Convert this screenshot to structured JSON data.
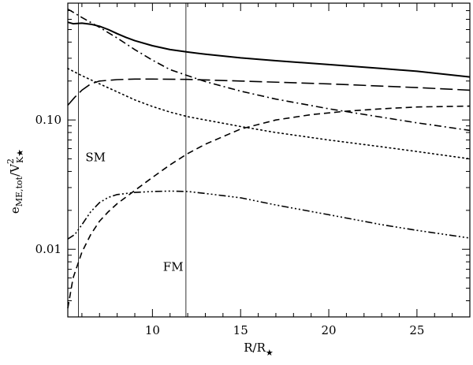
{
  "chart_data": {
    "type": "line",
    "title": "",
    "xlabel": {
      "main": "R/R",
      "sub": "★"
    },
    "ylabel": {
      "main": "e",
      "sub": "ME,tot",
      "mid": "/V",
      "sup": "2",
      "sub2": "K★"
    },
    "xlim": [
      5.2,
      28
    ],
    "ylim": [
      0.003,
      0.8
    ],
    "yscale": "log",
    "xticks": [
      10,
      15,
      20,
      25
    ],
    "xtick_labels": [
      "10",
      "15",
      "20",
      "25"
    ],
    "yticks": [
      0.01,
      0.1
    ],
    "ytick_labels": [
      "0.01",
      "0.10"
    ],
    "grid": false,
    "vlines": [
      5.8,
      11.9
    ],
    "annotations": [
      {
        "text": "SM",
        "x": 6.2,
        "y": 0.048
      },
      {
        "text": "FM",
        "x": 10.6,
        "y": 0.0068
      }
    ],
    "series": [
      {
        "style": "solid",
        "x": [
          5.2,
          5.5,
          6,
          6.5,
          7,
          7.5,
          8,
          8.5,
          9,
          10,
          11,
          12,
          13,
          15,
          17,
          20,
          23,
          25,
          28
        ],
        "y": [
          0.57,
          0.555,
          0.56,
          0.55,
          0.53,
          0.5,
          0.465,
          0.435,
          0.41,
          0.375,
          0.35,
          0.335,
          0.322,
          0.302,
          0.287,
          0.268,
          0.25,
          0.238,
          0.215
        ]
      },
      {
        "style": "dashdot",
        "x": [
          5.2,
          6,
          7,
          8,
          9,
          10,
          11,
          12,
          13,
          15,
          17,
          20,
          23,
          25,
          28
        ],
        "y": [
          0.72,
          0.62,
          0.52,
          0.43,
          0.35,
          0.29,
          0.245,
          0.22,
          0.198,
          0.167,
          0.145,
          0.122,
          0.105,
          0.095,
          0.083
        ]
      },
      {
        "style": "longdash",
        "x": [
          5.2,
          5.6,
          6,
          6.5,
          7,
          8,
          9,
          10,
          12,
          15,
          20,
          25,
          28
        ],
        "y": [
          0.13,
          0.15,
          0.17,
          0.19,
          0.2,
          0.205,
          0.207,
          0.207,
          0.206,
          0.2,
          0.19,
          0.178,
          0.17
        ]
      },
      {
        "style": "dotted",
        "x": [
          5.2,
          6,
          7,
          8,
          9,
          10,
          11,
          12,
          13,
          15,
          17,
          20,
          23,
          25,
          28
        ],
        "y": [
          0.25,
          0.22,
          0.19,
          0.165,
          0.143,
          0.127,
          0.115,
          0.106,
          0.1,
          0.089,
          0.08,
          0.07,
          0.062,
          0.057,
          0.05
        ]
      },
      {
        "style": "dashed",
        "x": [
          5.2,
          5.5,
          6,
          6.5,
          7,
          7.5,
          8,
          9,
          10,
          11,
          12,
          13,
          15,
          17,
          19,
          21,
          23,
          25,
          28
        ],
        "y": [
          0.0035,
          0.006,
          0.0095,
          0.013,
          0.0165,
          0.0195,
          0.0225,
          0.0285,
          0.036,
          0.045,
          0.055,
          0.065,
          0.085,
          0.1,
          0.11,
          0.117,
          0.122,
          0.126,
          0.128
        ]
      },
      {
        "style": "dashdotdotdot",
        "x": [
          5.2,
          5.6,
          6,
          6.5,
          7,
          7.5,
          8,
          9,
          10,
          11,
          12,
          13,
          15,
          17,
          20,
          23,
          25,
          28
        ],
        "y": [
          0.012,
          0.013,
          0.0155,
          0.0195,
          0.023,
          0.0252,
          0.0265,
          0.0275,
          0.028,
          0.0282,
          0.028,
          0.027,
          0.025,
          0.022,
          0.0185,
          0.0155,
          0.014,
          0.0122
        ]
      }
    ]
  }
}
